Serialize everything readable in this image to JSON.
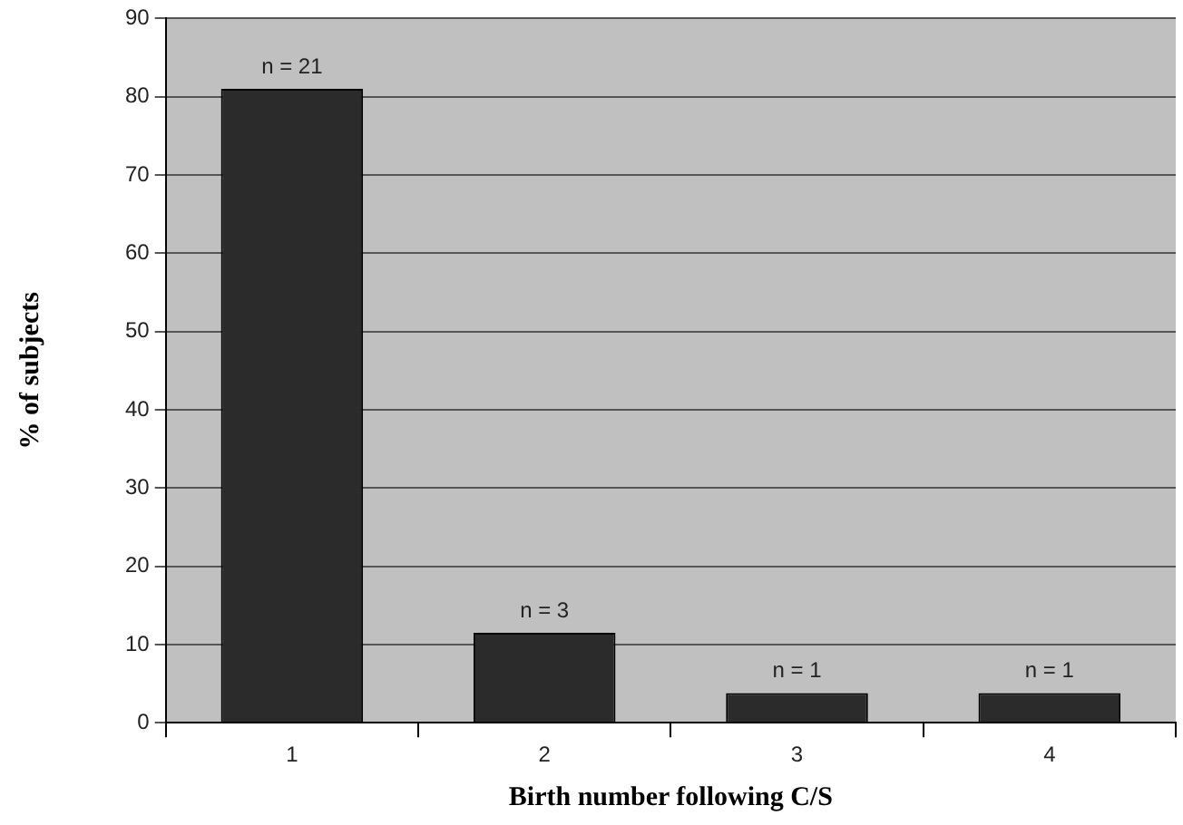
{
  "chart_data": {
    "type": "bar",
    "xlabel": "Birth number following C/S",
    "ylabel": "% of subjects",
    "categories": [
      "1",
      "2",
      "3",
      "4"
    ],
    "values": [
      81,
      11.5,
      3.8,
      3.8
    ],
    "color": "#2b2b2b",
    "ylim": [
      0,
      90
    ],
    "yticks": [
      0,
      10,
      20,
      30,
      40,
      50,
      60,
      70,
      80,
      90
    ],
    "grid": "y",
    "legend": false,
    "annotations": [
      {
        "text": "n = 21",
        "x": "1",
        "y": 81
      },
      {
        "text": "n = 3",
        "x": "2",
        "y": 11.5
      },
      {
        "text": "n = 1",
        "x": "3",
        "y": 3.8
      },
      {
        "text": "n = 1",
        "x": "4",
        "y": 3.8
      }
    ]
  }
}
